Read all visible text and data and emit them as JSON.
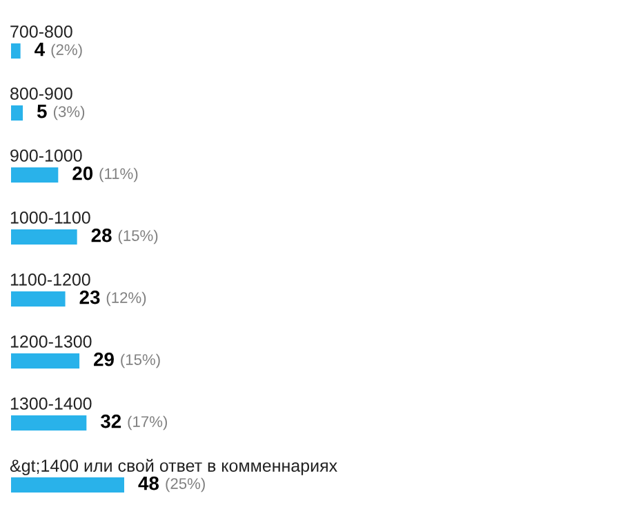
{
  "chart_data": {
    "type": "bar",
    "orientation": "horizontal",
    "categories": [
      "700-800",
      "800-900",
      "900-1000",
      "1000-1100",
      "1100-1200",
      "1200-1300",
      "1300-1400",
      "&gt;1400 или свой ответ в комменнариях"
    ],
    "values": [
      4,
      5,
      20,
      28,
      23,
      29,
      32,
      48
    ],
    "color": "#29b2ea",
    "value_labels": [
      "4 (2%)",
      "5 (3%)",
      "20 (11%)",
      "28 (15%)",
      "23 (12%)",
      "29 (15%)",
      "32 (17%)",
      "48 (25%)"
    ]
  }
}
